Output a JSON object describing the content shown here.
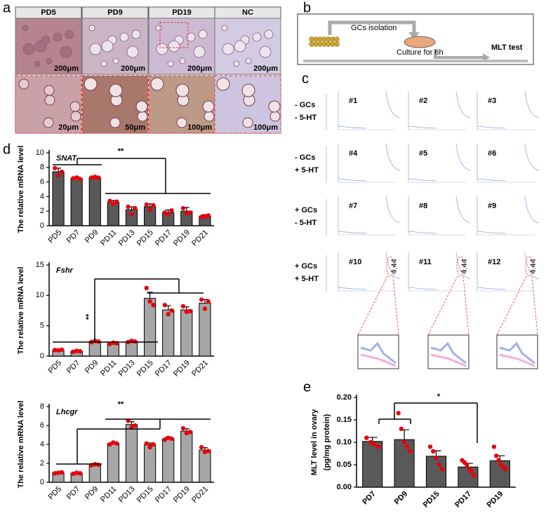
{
  "figure": {
    "panel_letters": [
      "a",
      "b",
      "c",
      "d",
      "e"
    ],
    "panel_a": {
      "columns": [
        "PD5",
        "PD9",
        "PD19",
        "NC"
      ],
      "scale_top": [
        "200μm",
        "200μm",
        "200μm",
        "200μm"
      ],
      "scale_bottom": [
        "20μm",
        "50μm",
        "100μm",
        "100μm"
      ]
    },
    "panel_b": {
      "step1": "GCs isolation",
      "step2": "Culture for 6h",
      "result": "MLT test"
    },
    "panel_c": {
      "rows": [
        [
          "- GCs",
          "- 5-HT"
        ],
        [
          "- GCs",
          "+ 5-HT"
        ],
        [
          "+ GCs",
          "- 5-HT"
        ],
        [
          "+ GCs",
          "+ 5-HT"
        ]
      ],
      "samples": [
        "#1",
        "#2",
        "#3",
        "#4",
        "#5",
        "#6",
        "#7",
        "#8",
        "#9",
        "#10",
        "#11",
        "#12"
      ],
      "peak_labels": [
        "4.44",
        "4.44",
        "4.44"
      ]
    }
  },
  "chart_data": [
    {
      "type": "bar",
      "title": "SNAT",
      "ylabel": [
        "The relative mRNA level"
      ],
      "significance": "**",
      "categories": [
        "PD5",
        "PD7",
        "PD9",
        "PD11",
        "PD13",
        "PD15",
        "PD17",
        "PD19",
        "PD21"
      ],
      "values": [
        7.4,
        6.5,
        6.6,
        3.2,
        2.2,
        2.6,
        1.8,
        2.0,
        1.3
      ],
      "errors": [
        0.5,
        0.2,
        0.1,
        0.25,
        0.4,
        0.4,
        0.35,
        0.5,
        0.2
      ],
      "points": [
        [
          7.9,
          6.9,
          7.4
        ],
        [
          6.5,
          6.6,
          6.4
        ],
        [
          6.6,
          6.7,
          6.6
        ],
        [
          3.4,
          3.0,
          3.3
        ],
        [
          2.6,
          1.6,
          2.4
        ],
        [
          2.9,
          2.2,
          2.8
        ],
        [
          1.8,
          1.5,
          2.1
        ],
        [
          2.4,
          1.7,
          1.8
        ],
        [
          1.2,
          1.3,
          1.4
        ]
      ],
      "color": "#595959",
      "point_color": "#e8000b",
      "ylim": [
        0,
        10
      ],
      "yticks": [
        0,
        2,
        4,
        6,
        8,
        10
      ]
    },
    {
      "type": "bar",
      "title": "Fshr",
      "ylabel": [
        "The relative mRNA level"
      ],
      "significance": "**",
      "categories": [
        "PD5",
        "PD7",
        "PD9",
        "PD11",
        "PD13",
        "PD15",
        "PD17",
        "PD19",
        "PD21"
      ],
      "values": [
        1.0,
        0.8,
        2.4,
        2.1,
        2.4,
        9.5,
        7.6,
        7.6,
        8.7
      ],
      "errors": [
        0.05,
        0.1,
        0.1,
        0.1,
        0.1,
        1.0,
        0.7,
        0.5,
        0.6
      ],
      "points": [
        [
          1.0,
          0.95,
          1.05
        ],
        [
          0.7,
          0.85,
          0.8
        ],
        [
          2.3,
          2.5,
          2.4
        ],
        [
          2.0,
          2.2,
          2.1
        ],
        [
          2.3,
          2.5,
          2.4
        ],
        [
          11.2,
          9.0,
          8.4
        ],
        [
          8.4,
          6.9,
          7.5
        ],
        [
          8.2,
          7.3,
          7.4
        ],
        [
          9.3,
          7.8,
          9.0
        ]
      ],
      "color": "#a6a6a6",
      "point_color": "#e8000b",
      "ylim": [
        0,
        15
      ],
      "yticks": [
        0,
        5,
        10,
        15
      ]
    },
    {
      "type": "bar",
      "title": "Lhcgr",
      "ylabel": [
        "The relative mRNA level"
      ],
      "significance": "**",
      "categories": [
        "PD5",
        "PD7",
        "PD9",
        "PD11",
        "PD13",
        "PD15",
        "PD17",
        "PD19",
        "PD21"
      ],
      "values": [
        1.0,
        0.95,
        1.85,
        4.1,
        6.1,
        3.95,
        4.6,
        5.4,
        3.4
      ],
      "errors": [
        0.05,
        0.1,
        0.1,
        0.1,
        0.3,
        0.2,
        0.15,
        0.25,
        0.25
      ],
      "points": [
        [
          0.95,
          1.0,
          1.05
        ],
        [
          0.9,
          1.0,
          0.95
        ],
        [
          1.8,
          1.9,
          1.85
        ],
        [
          4.0,
          4.2,
          4.1
        ],
        [
          6.5,
          5.8,
          6.0
        ],
        [
          4.1,
          3.7,
          4.0
        ],
        [
          4.5,
          4.7,
          4.6
        ],
        [
          5.7,
          5.2,
          5.3
        ],
        [
          3.7,
          3.2,
          3.3
        ]
      ],
      "color": "#a6a6a6",
      "point_color": "#e8000b",
      "ylim": [
        0,
        8
      ],
      "yticks": [
        0,
        2,
        4,
        6,
        8
      ]
    },
    {
      "type": "bar",
      "ylabel": [
        "MLT level in ovary",
        "(pg/mg protein)"
      ],
      "significance": "*",
      "categories": [
        "PD7",
        "PD9",
        "PD15",
        "PD17",
        "PD19"
      ],
      "values": [
        0.102,
        0.106,
        0.069,
        0.045,
        0.059
      ],
      "errors": [
        0.009,
        0.022,
        0.012,
        0.008,
        0.011
      ],
      "points": [
        [
          0.11,
          0.1,
          0.095,
          0.09
        ],
        [
          0.165,
          0.13,
          0.1,
          0.09,
          0.08
        ],
        [
          0.09,
          0.08,
          0.065,
          0.05,
          0.04
        ],
        [
          0.06,
          0.055,
          0.05,
          0.04,
          0.035,
          0.025
        ],
        [
          0.09,
          0.07,
          0.06,
          0.05,
          0.045,
          0.04
        ]
      ],
      "color": "#595959",
      "point_color": "#e8000b",
      "ylim": [
        0,
        0.2
      ],
      "yticks": [
        {
          "value": 0,
          "label": "0.00"
        },
        0.05,
        {
          "value": 0.1,
          "label": "0.10"
        },
        0.15,
        {
          "value": 0.2,
          "label": "0.20"
        }
      ]
    }
  ]
}
